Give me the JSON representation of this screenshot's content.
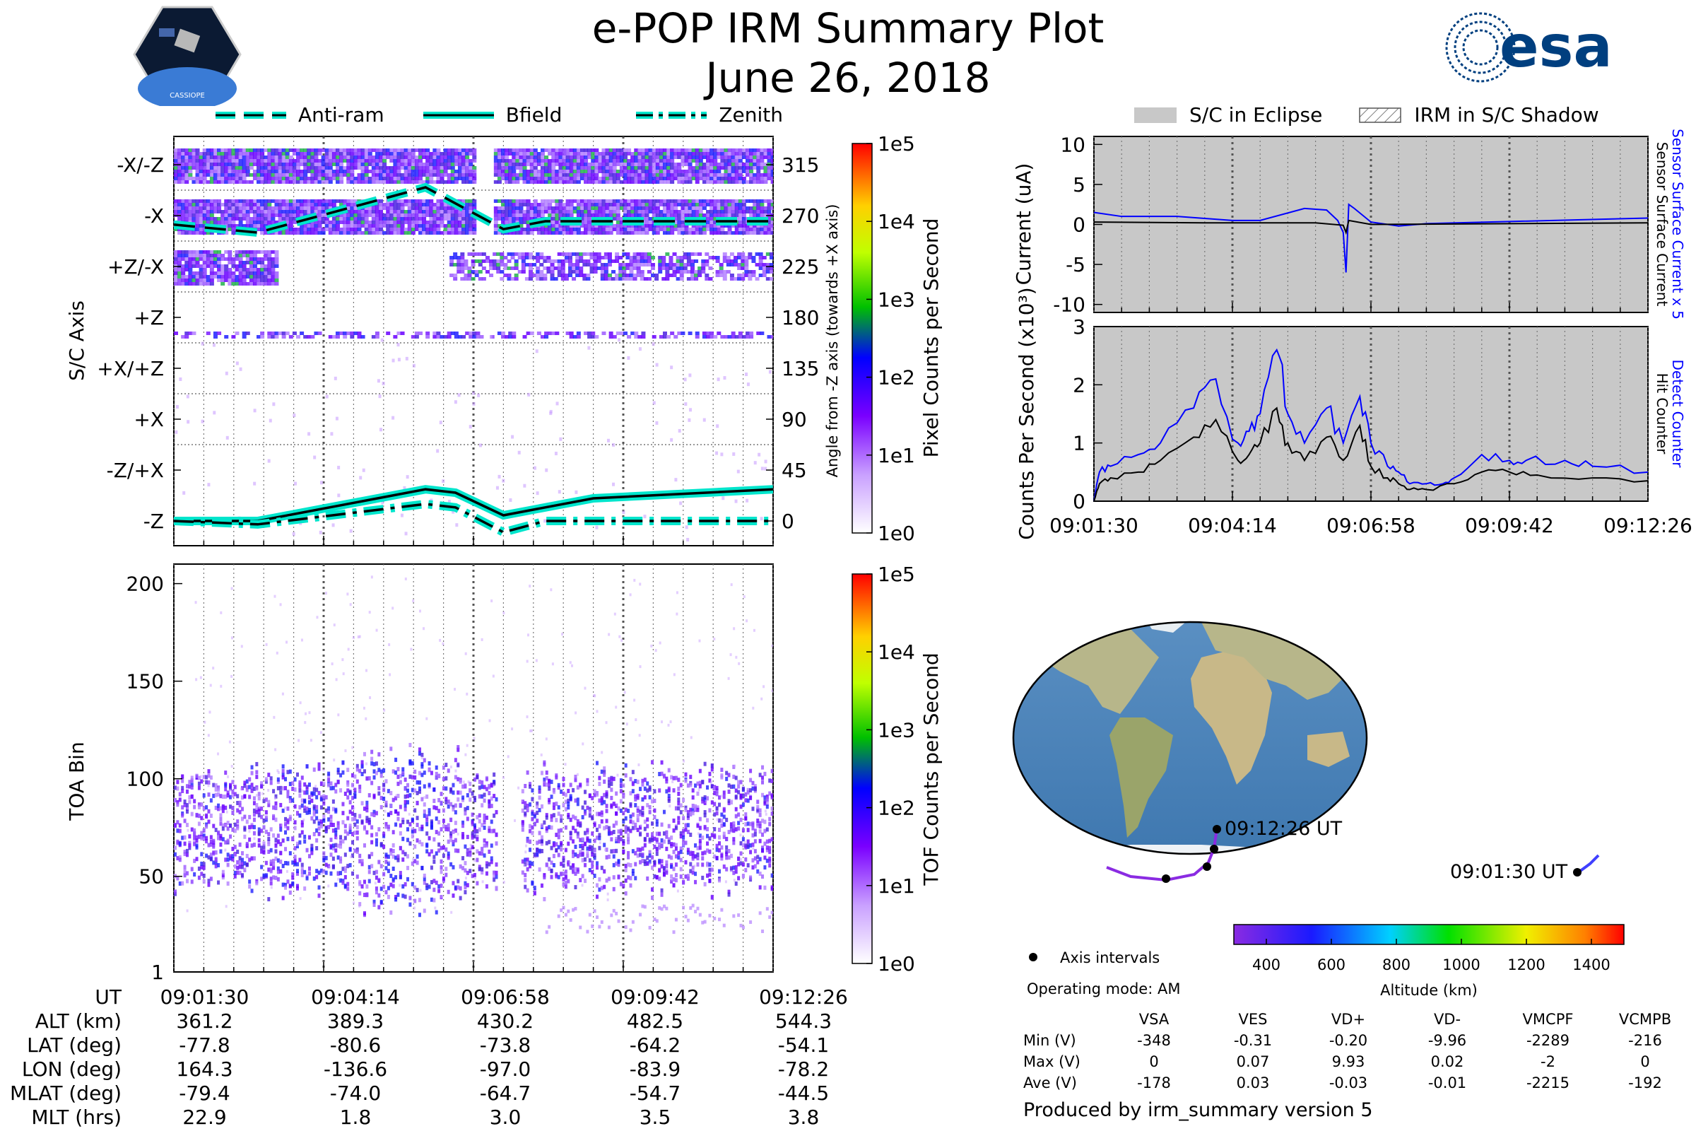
{
  "header": {
    "title": "e-POP IRM Summary Plot",
    "date": "June 26, 2018",
    "mission_logo_text": "CASSIOPE",
    "agency_logo_text": "esa"
  },
  "time_ticks": [
    "09:01:30",
    "09:04:14",
    "09:06:58",
    "09:09:42",
    "09:12:26"
  ],
  "legend_top": [
    "Anti-ram",
    "Bfield",
    "Zenith"
  ],
  "legend_right": [
    "S/C in Eclipse",
    "IRM in S/C Shadow"
  ],
  "colors": {
    "cyan": "#00e5cc",
    "blue": "#0000ff",
    "grey": "#c8c8c8",
    "purple": "#8a2be2"
  },
  "chart_data": [
    {
      "type": "heatmap",
      "name": "sc_axis",
      "ylabel": "S/C Axis",
      "ylabel_right": "Angle from -Z axis (towards +X axis)",
      "y_categories": [
        "-X/-Z",
        "-X",
        "+Z/-X",
        "+Z",
        "+X/+Z",
        "+X",
        "-Z/+X",
        "-Z"
      ],
      "y_right_ticks": [
        315,
        270,
        225,
        180,
        135,
        90,
        45,
        0
      ],
      "colorbar_label": "Pixel Counts per Second",
      "colorbar_ticks": [
        "1e5",
        "1e4",
        "1e3",
        "1e2",
        "1e1",
        "1e0"
      ],
      "series": [
        {
          "name": "Bfield",
          "x": [
            0,
            0.14,
            0.42,
            0.47,
            0.55,
            0.7,
            1.0
          ],
          "y": [
            0,
            0,
            28,
            25,
            5,
            20,
            28
          ]
        },
        {
          "name": "Zenith",
          "x": [
            0,
            0.14,
            0.42,
            0.47,
            0.55,
            0.62,
            1.0
          ],
          "y": [
            0,
            -3,
            15,
            12,
            -10,
            0,
            0
          ]
        },
        {
          "name": "Anti-ram",
          "x": [
            0,
            0.14,
            0.35,
            0.42,
            0.55,
            0.62,
            1.0
          ],
          "y": [
            262,
            255,
            285,
            295,
            258,
            265,
            265
          ]
        }
      ]
    },
    {
      "type": "heatmap",
      "name": "toa",
      "ylabel": "TOA Bin",
      "y_ticks": [
        1,
        50,
        100,
        150,
        200
      ],
      "ylim": [
        1,
        210
      ],
      "colorbar_label": "TOF Counts per Second",
      "colorbar_ticks": [
        "1e5",
        "1e4",
        "1e3",
        "1e2",
        "1e1",
        "1e0"
      ]
    },
    {
      "type": "line",
      "name": "current",
      "ylabel": "Current (uA)",
      "ylim": [
        -11,
        11
      ],
      "y_ticks": [
        10,
        5,
        0,
        -5,
        -10
      ],
      "right_labels": [
        "Sensor Surface Current x 5",
        "Sensor Surface Current"
      ],
      "series": [
        {
          "name": "Sensor Surface Current x 5",
          "x": [
            0,
            0.05,
            0.15,
            0.25,
            0.3,
            0.38,
            0.42,
            0.44,
            0.45,
            0.455,
            0.46,
            0.47,
            0.5,
            0.55,
            0.6,
            1.0
          ],
          "y": [
            1.5,
            1.0,
            1.0,
            0.5,
            0.5,
            2.0,
            1.8,
            0.5,
            -1.0,
            -6.0,
            2.5,
            2.0,
            0.3,
            -0.2,
            0.1,
            0.8
          ]
        },
        {
          "name": "Sensor Surface Current",
          "x": [
            0,
            0.2,
            0.4,
            0.45,
            0.455,
            0.46,
            0.5,
            1.0
          ],
          "y": [
            0.3,
            0.2,
            0.2,
            -0.1,
            -1.0,
            0.5,
            0.0,
            0.2
          ]
        }
      ]
    },
    {
      "type": "line",
      "name": "counts",
      "ylabel": "Counts Per Second (x10³)",
      "ylim": [
        0,
        3
      ],
      "y_ticks": [
        0,
        1,
        2,
        3
      ],
      "right_labels": [
        "Detect Counter",
        "Hit Counter"
      ],
      "series": [
        {
          "name": "Detect Counter",
          "x": [
            0,
            0.01,
            0.03,
            0.08,
            0.12,
            0.18,
            0.22,
            0.26,
            0.28,
            0.3,
            0.33,
            0.35,
            0.38,
            0.42,
            0.45,
            0.48,
            0.5,
            0.53,
            0.55,
            0.57,
            0.6,
            0.63,
            0.65,
            0.7,
            0.75,
            0.78,
            0.85,
            0.9,
            1.0
          ],
          "y": [
            0,
            0.5,
            0.6,
            0.8,
            1.0,
            1.6,
            2.1,
            1.0,
            1.2,
            1.5,
            2.6,
            1.5,
            1.0,
            1.6,
            1.0,
            1.8,
            1.0,
            0.6,
            0.5,
            0.3,
            0.3,
            0.3,
            0.4,
            0.8,
            0.7,
            0.7,
            0.7,
            0.6,
            0.5
          ]
        },
        {
          "name": "Hit Counter",
          "x": [
            0,
            0.01,
            0.03,
            0.08,
            0.12,
            0.18,
            0.22,
            0.26,
            0.28,
            0.3,
            0.33,
            0.35,
            0.38,
            0.42,
            0.45,
            0.48,
            0.5,
            0.53,
            0.55,
            0.57,
            0.6,
            0.65,
            0.7,
            0.75,
            0.8,
            0.9,
            1.0
          ],
          "y": [
            0,
            0.3,
            0.4,
            0.5,
            0.7,
            1.1,
            1.4,
            0.7,
            0.8,
            1.0,
            1.6,
            1.0,
            0.7,
            1.1,
            0.7,
            1.3,
            0.6,
            0.4,
            0.3,
            0.2,
            0.2,
            0.3,
            0.5,
            0.5,
            0.45,
            0.4,
            0.35
          ]
        }
      ]
    },
    {
      "type": "scatter",
      "name": "map_track",
      "start_label": "09:01:30 UT",
      "end_label": "09:12:26 UT",
      "colorbar_label": "Altitude (km)",
      "colorbar_ticks": [
        400,
        600,
        800,
        1000,
        1200,
        1400
      ],
      "colorbar_range": [
        300,
        1500
      ]
    }
  ],
  "map_legend": {
    "axis_intervals": "Axis intervals",
    "mode": "Operating mode: AM"
  },
  "voltage_table": {
    "columns": [
      "",
      "VSA",
      "VES",
      "VD+",
      "VD-",
      "VMCPF",
      "VCMPB"
    ],
    "rows": [
      [
        "Min (V)",
        "-348",
        "-0.31",
        "-0.20",
        "-9.96",
        "-2289",
        "-216"
      ],
      [
        "Max (V)",
        "0",
        "0.07",
        "9.93",
        "0.02",
        "-2",
        "0"
      ],
      [
        "Ave (V)",
        "-178",
        "0.03",
        "-0.03",
        "-0.01",
        "-2215",
        "-192"
      ]
    ]
  },
  "ephemeris": {
    "rows": [
      [
        "UT",
        "09:01:30",
        "09:04:14",
        "09:06:58",
        "09:09:42",
        "09:12:26"
      ],
      [
        "ALT (km)",
        "361.2",
        "389.3",
        "430.2",
        "482.5",
        "544.3"
      ],
      [
        "LAT (deg)",
        "-77.8",
        "-80.6",
        "-73.8",
        "-64.2",
        "-54.1"
      ],
      [
        "LON (deg)",
        "164.3",
        "-136.6",
        "-97.0",
        "-83.9",
        "-78.2"
      ],
      [
        "MLAT (deg)",
        "-79.4",
        "-74.0",
        "-64.7",
        "-54.7",
        "-44.5"
      ],
      [
        "MLT (hrs)",
        "22.9",
        "1.8",
        "3.0",
        "3.5",
        "3.8"
      ]
    ]
  },
  "footer": "Produced by irm_summary version 5"
}
